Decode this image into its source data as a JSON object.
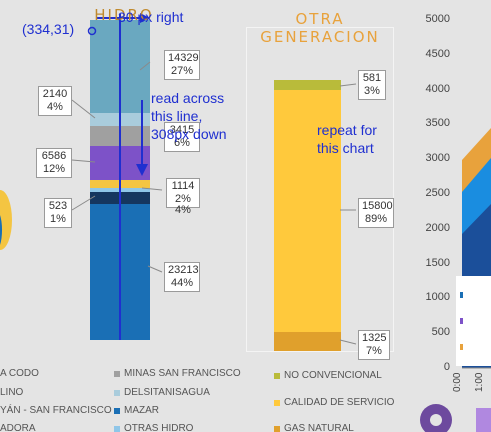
{
  "chart_data": [
    {
      "type": "bar",
      "title": "HIDRO",
      "stacked": true,
      "segments": [
        {
          "value": 23213,
          "pct": "44%",
          "color": "#1a6fb5"
        },
        {
          "value": null,
          "pct": "4%",
          "color": "#15365f"
        },
        {
          "value": 523,
          "pct": "1%",
          "color": "#8fc6e8"
        },
        {
          "value": 1114,
          "pct": "2%",
          "color": "#f4c542"
        },
        {
          "value": 6586,
          "pct": "12%",
          "color": "#7d52c8"
        },
        {
          "value": 3415,
          "pct": "6%",
          "color": "#a0a0a0"
        },
        {
          "value": 2140,
          "pct": "4%",
          "color": "#a9ccdc"
        },
        {
          "value": 14329,
          "pct": "27%",
          "color": "#6aa8c0"
        }
      ]
    },
    {
      "type": "bar",
      "title": "OTRA GENERACION",
      "stacked": true,
      "segments": [
        {
          "value": 1325,
          "pct": "7%",
          "color": "#e0a02c"
        },
        {
          "value": 15800,
          "pct": "89%",
          "color": "#ffc93c"
        },
        {
          "value": 581,
          "pct": "3%",
          "color": "#b9bb3a"
        }
      ]
    },
    {
      "type": "area",
      "yticks": [
        "5000",
        "4500",
        "4000",
        "3500",
        "3000",
        "2500",
        "2000",
        "1500",
        "1000",
        "500",
        "0"
      ],
      "ylim": [
        0,
        5000
      ],
      "xticks": [
        "0:00",
        "1:00"
      ]
    }
  ],
  "labels": {
    "hidro_title": "HIDRO",
    "otra_title_line1": "OTRA",
    "otra_title_line2": "GENERACION",
    "callouts": {
      "c14329": [
        "14329",
        "27%"
      ],
      "c2140": [
        "2140",
        "4%"
      ],
      "c3415": [
        "3415",
        "6%"
      ],
      "c6586": [
        "6586",
        "12%"
      ],
      "c1114": [
        "1114",
        "2%"
      ],
      "c4pct": "4%",
      "c523": [
        "523",
        "1%"
      ],
      "c23213": [
        "23213",
        "44%"
      ],
      "c581": [
        "581",
        "3%"
      ],
      "c15800": [
        "15800",
        "89%"
      ],
      "c1325": [
        "1325",
        "7%"
      ]
    }
  },
  "legend": {
    "col1": [
      "A CODO",
      "LINO",
      "YÁN - SAN FRANCISCO",
      "ADORA"
    ],
    "col2": [
      {
        "label": "MINAS SAN FRANCISCO",
        "color": "#a0a0a0"
      },
      {
        "label": "DELSITANISAGUA",
        "color": "#a9ccdc"
      },
      {
        "label": "MAZAR",
        "color": "#1a6fb5"
      },
      {
        "label": "OTRAS HIDRO",
        "color": "#8fc6e8"
      }
    ],
    "col3": [
      {
        "label": "NO CONVENCIONAL",
        "color": "#b9bb3a"
      },
      {
        "label": "CALIDAD DE SERVICIO",
        "color": "#ffc93c"
      },
      {
        "label": "GAS NATURAL",
        "color": "#e0a02c"
      }
    ]
  },
  "annotations": {
    "coord": "(334,31)",
    "right_note": "30 px right",
    "down_note_1": "read across",
    "down_note_2": "this line,",
    "down_note_3": "308px down",
    "repeat_1": "repeat for",
    "repeat_2": "this chart"
  },
  "colors": {
    "annotation": "#1f2fd0",
    "background": "#e4e4e4"
  }
}
